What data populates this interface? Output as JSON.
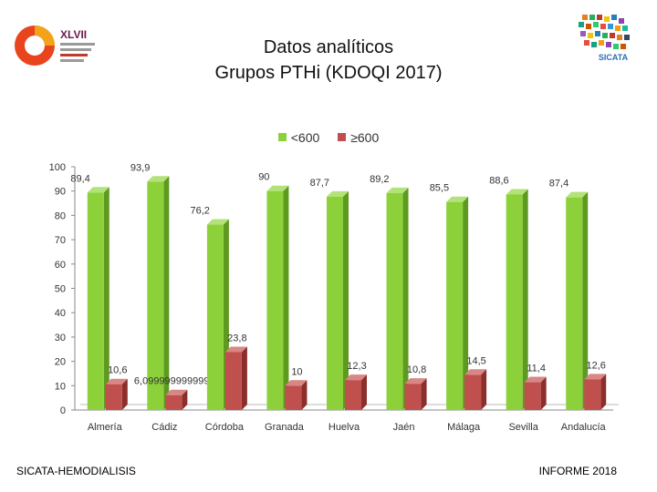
{
  "header": {
    "title_line1": "Datos analíticos",
    "title_line2": "Grupos PTHi (KDOQI 2017)",
    "left_logo": {
      "big_text": "XLVII"
    },
    "right_logo": {
      "text": "SICATA"
    }
  },
  "footer": {
    "left": "SICATA-HEMODIALISIS",
    "right": "INFORME 2018"
  },
  "colors": {
    "series_lt600": "#8cd13a",
    "series_ge600": "#c0504d"
  },
  "chart_data": {
    "type": "bar",
    "categories": [
      "Almería",
      "Cádiz",
      "Córdoba",
      "Granada",
      "Huelva",
      "Jaén",
      "Málaga",
      "Sevilla",
      "Andalucía"
    ],
    "series": [
      {
        "name": "<600",
        "values": [
          89.4,
          93.9,
          76.2,
          90,
          87.7,
          89.2,
          85.5,
          88.6,
          87.4
        ],
        "labels": [
          "89,4",
          "93,9",
          "76,2",
          "90",
          "87,7",
          "89,2",
          "85,5",
          "88,6",
          "87,4"
        ]
      },
      {
        "name": "≥600",
        "values": [
          10.6,
          6.1,
          23.8,
          10,
          12.3,
          10.8,
          14.5,
          11.4,
          12.6
        ],
        "labels": [
          "10,6",
          "6,09999999999999",
          "23,8",
          "10",
          "12,3",
          "10,8",
          "14,5",
          "11,4",
          "12,6"
        ]
      }
    ],
    "ylim": [
      0,
      100
    ],
    "yticks": [
      0,
      10,
      20,
      30,
      40,
      50,
      60,
      70,
      80,
      90,
      100
    ],
    "legend_position": "top-center",
    "style": "3d-bars",
    "grid": false
  }
}
